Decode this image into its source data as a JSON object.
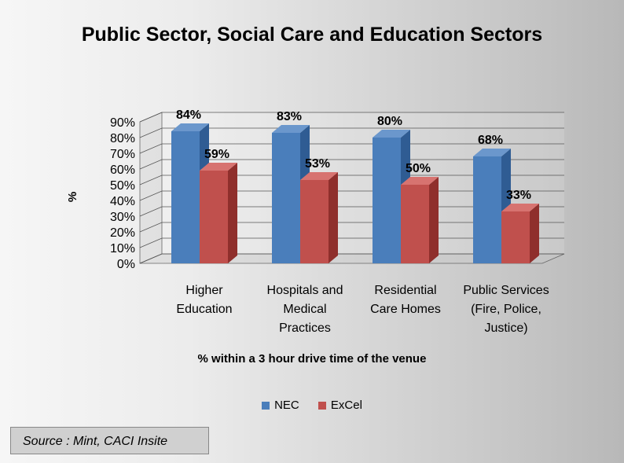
{
  "title": "Public Sector, Social Care and Education Sectors",
  "source": "Source : Mint, CACI Insite",
  "chart_data": {
    "type": "bar",
    "title": "Public Sector, Social Care and Education Sectors",
    "xlabel": "% within a 3 hour drive time of the venue",
    "ylabel": "%",
    "ylim": [
      0,
      90
    ],
    "yticks": [
      "0%",
      "10%",
      "20%",
      "30%",
      "40%",
      "50%",
      "60%",
      "70%",
      "80%",
      "90%"
    ],
    "categories": [
      [
        "Higher",
        "Education"
      ],
      [
        "Hospitals and",
        "Medical",
        "Practices"
      ],
      [
        "Residential",
        "Care Homes"
      ],
      [
        "Public Services",
        "(Fire, Police,",
        "Justice)"
      ]
    ],
    "series": [
      {
        "name": "NEC",
        "values": [
          84,
          83,
          80,
          68
        ],
        "labels": [
          "84%",
          "83%",
          "80%",
          "68%"
        ],
        "color": "#4a7ebb"
      },
      {
        "name": "ExCel",
        "values": [
          59,
          53,
          50,
          33
        ],
        "labels": [
          "59%",
          "53%",
          "50%",
          "33%"
        ],
        "color": "#c0504d"
      }
    ],
    "grid": true,
    "legend": "bottom"
  }
}
